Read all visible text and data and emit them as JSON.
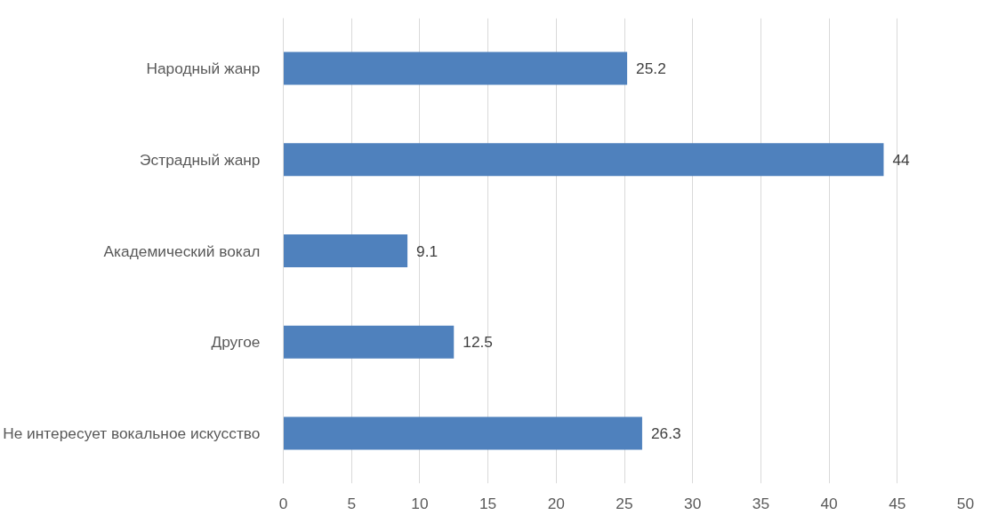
{
  "chart_data": {
    "type": "bar",
    "orientation": "horizontal",
    "categories": [
      "Народный жанр",
      "Эстрадный жанр",
      "Академический вокал",
      "Другое",
      "Не интересует вокальное искусство"
    ],
    "values": [
      25.2,
      44,
      9.1,
      12.5,
      26.3
    ],
    "color": "#4f81bd",
    "xlim": [
      0,
      50
    ],
    "xticks": [
      0,
      5,
      10,
      15,
      20,
      25,
      30,
      35,
      40,
      45,
      50
    ],
    "grid": "x",
    "data_labels": true
  }
}
